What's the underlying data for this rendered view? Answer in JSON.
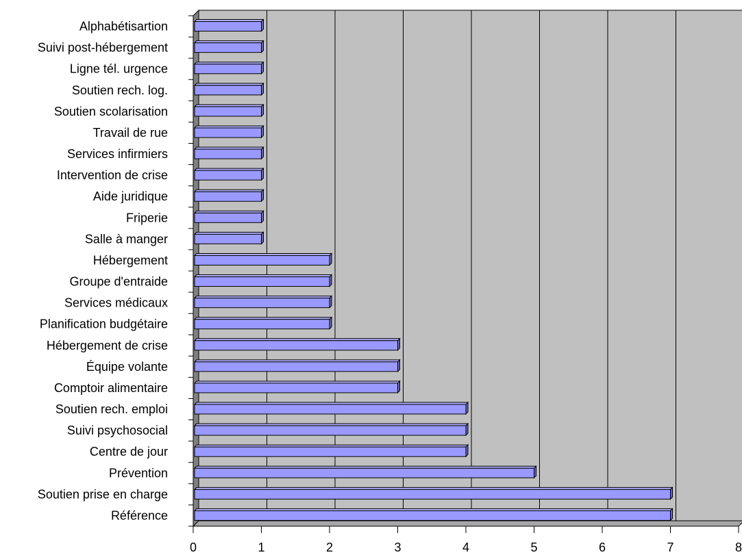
{
  "chart_data": {
    "type": "bar",
    "orientation": "horizontal",
    "style": "3d",
    "title": "",
    "xlabel": "",
    "ylabel": "",
    "categories": [
      "Alphabétisartion",
      "Suivi post-hébergement",
      "Ligne tél. urgence",
      "Soutien rech. log.",
      "Soutien scolarisation",
      "Travail de rue",
      "Services infirmiers",
      "Intervention de crise",
      "Aide juridique",
      "Friperie",
      "Salle à manger",
      "Hébergement",
      "Groupe d'entraide",
      "Services médicaux",
      "Planification budgétaire",
      "Hébergement de crise",
      "Équipe volante",
      "Comptoir alimentaire",
      "Soutien rech. emploi",
      "Suivi psychosocial",
      "Centre de jour",
      "Prévention",
      "Soutien prise en charge",
      "Référence"
    ],
    "values": [
      1,
      1,
      1,
      1,
      1,
      1,
      1,
      1,
      1,
      1,
      1,
      2,
      2,
      2,
      2,
      3,
      3,
      3,
      4,
      4,
      4,
      5,
      7,
      7
    ],
    "xlim": [
      0,
      8
    ],
    "xticks": [
      "0",
      "1",
      "2",
      "3",
      "4",
      "5",
      "6",
      "7",
      "8"
    ],
    "grid": true,
    "legend": "none",
    "colors": {
      "bar_front": "#9999ff",
      "bar_top": "#b3b3ff",
      "bar_side": "#6666cc",
      "back_wall": "#c0c0c0",
      "side_wall": "#808080",
      "floor": "#a6a6a6",
      "grid": "#000000"
    }
  }
}
